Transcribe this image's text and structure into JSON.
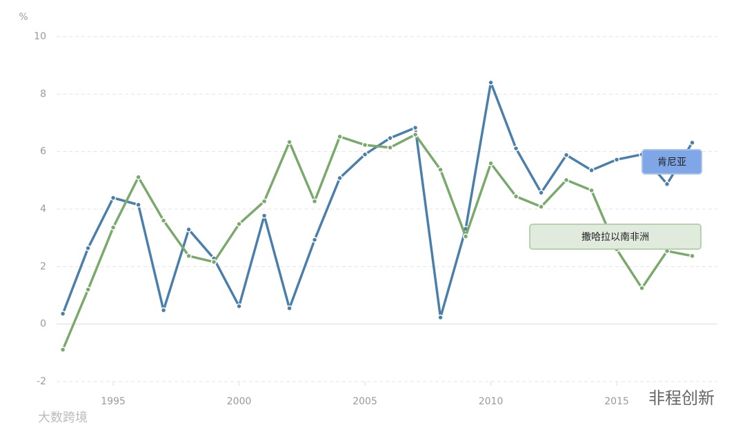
{
  "chart_data": {
    "type": "line",
    "y_label": "%",
    "x": [
      1993,
      1994,
      1995,
      1996,
      1997,
      1998,
      1999,
      2000,
      2001,
      2002,
      2003,
      2004,
      2005,
      2006,
      2007,
      2008,
      2009,
      2010,
      2011,
      2012,
      2013,
      2014,
      2015,
      2016,
      2017,
      2018
    ],
    "series": [
      {
        "name": "肯尼亚",
        "color": "#4a7fac",
        "values": [
          0.36,
          2.64,
          4.39,
          4.15,
          0.48,
          3.29,
          2.28,
          0.62,
          3.77,
          0.55,
          2.93,
          5.08,
          5.9,
          6.47,
          6.83,
          0.23,
          3.31,
          8.4,
          6.11,
          4.57,
          5.88,
          5.35,
          5.72,
          5.9,
          4.87,
          6.31
        ]
      },
      {
        "name": "撒哈拉以南非洲",
        "color": "#79a96b",
        "values": [
          -0.89,
          1.2,
          3.36,
          5.11,
          3.6,
          2.37,
          2.16,
          3.48,
          4.27,
          6.33,
          4.27,
          6.52,
          6.23,
          6.14,
          6.59,
          5.37,
          3.05,
          5.59,
          4.44,
          4.08,
          5.01,
          4.65,
          2.6,
          1.25,
          2.54,
          2.37
        ]
      }
    ],
    "xlim": [
      1992.75,
      2019
    ],
    "xticks": [
      1995,
      2000,
      2005,
      2010,
      2015
    ],
    "ylim": [
      -2,
      10
    ],
    "yticks": [
      -2,
      0,
      2,
      4,
      6,
      8,
      10
    ],
    "grid": true,
    "watermarks": [
      "大数跨境",
      "非程创新"
    ]
  }
}
